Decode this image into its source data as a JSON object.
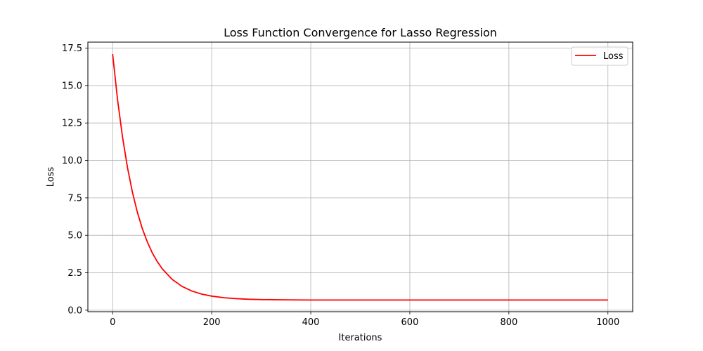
{
  "chart_data": {
    "type": "line",
    "title": "Loss Function Convergence for Lasso Regression",
    "xlabel": "Iterations",
    "ylabel": "Loss",
    "xlim": [
      -50,
      1050
    ],
    "ylim": [
      -0.1,
      17.9
    ],
    "xticks": [
      0,
      200,
      400,
      600,
      800,
      1000
    ],
    "xtick_labels": [
      "0",
      "200",
      "400",
      "600",
      "800",
      "1000"
    ],
    "yticks": [
      0.0,
      2.5,
      5.0,
      7.5,
      10.0,
      12.5,
      15.0,
      17.5
    ],
    "ytick_labels": [
      "0.0",
      "2.5",
      "5.0",
      "7.5",
      "10.0",
      "12.5",
      "15.0",
      "17.5"
    ],
    "grid": true,
    "legend_position": "top-right",
    "series": [
      {
        "name": "Loss",
        "color": "#ff0000",
        "x": [
          0,
          10,
          20,
          30,
          40,
          50,
          60,
          70,
          80,
          90,
          100,
          120,
          140,
          160,
          180,
          200,
          225,
          250,
          275,
          300,
          350,
          400,
          450,
          500,
          600,
          700,
          800,
          900,
          1000
        ],
        "values": [
          17.1,
          14.04,
          11.55,
          9.52,
          7.87,
          6.53,
          5.44,
          4.56,
          3.83,
          3.25,
          2.77,
          2.06,
          1.59,
          1.28,
          1.07,
          0.94,
          0.83,
          0.77,
          0.73,
          0.71,
          0.69,
          0.68,
          0.68,
          0.68,
          0.68,
          0.68,
          0.68,
          0.68,
          0.68
        ]
      }
    ]
  }
}
